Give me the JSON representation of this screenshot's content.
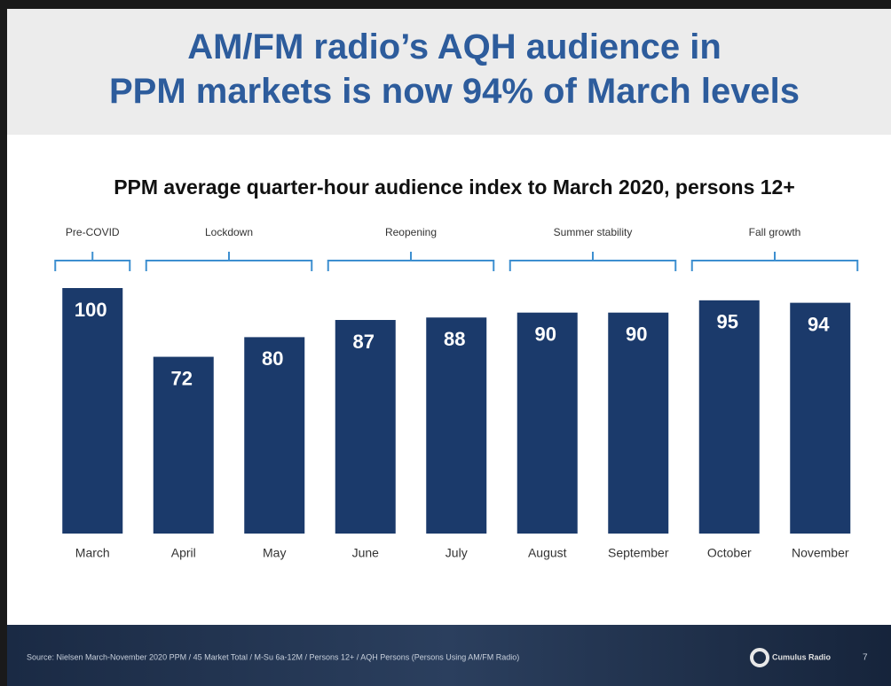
{
  "chart_data": {
    "type": "bar",
    "title": "AM/FM radio’s AQH audience in PPM markets is now 94% of March levels",
    "subtitle": "PPM average quarter-hour audience index to March 2020, persons 12+",
    "categories": [
      "March",
      "April",
      "May",
      "June",
      "July",
      "August",
      "September",
      "October",
      "November"
    ],
    "values": [
      100,
      72,
      80,
      87,
      88,
      90,
      90,
      95,
      94
    ],
    "color": "#1b3a6b",
    "ylim": [
      0,
      100
    ],
    "groups": [
      "Pre-COVID",
      "Lockdown",
      "Reopening",
      "Summer stability",
      "Fall growth"
    ],
    "footer": {
      "source": "Source: Nielsen March-November 2020 PPM / 45 Market Total / M-Su 6a-12M / Persons 12+ / AQH Persons (Persons Using AM/FM Radio)",
      "brand": "Cumulus Radio",
      "page": "7"
    }
  }
}
